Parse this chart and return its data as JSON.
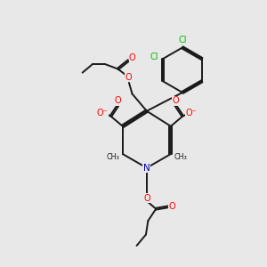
{
  "bg_color": "#e8e8e8",
  "bond_color": "#1a1a1a",
  "o_color": "#ff0000",
  "n_color": "#0000bb",
  "cl_color": "#00bb00",
  "lw": 1.4,
  "dbo": 0.03,
  "fig_w": 3.0,
  "fig_h": 3.0,
  "dpi": 100,
  "xlim": [
    0,
    10
  ],
  "ylim": [
    0,
    10
  ]
}
